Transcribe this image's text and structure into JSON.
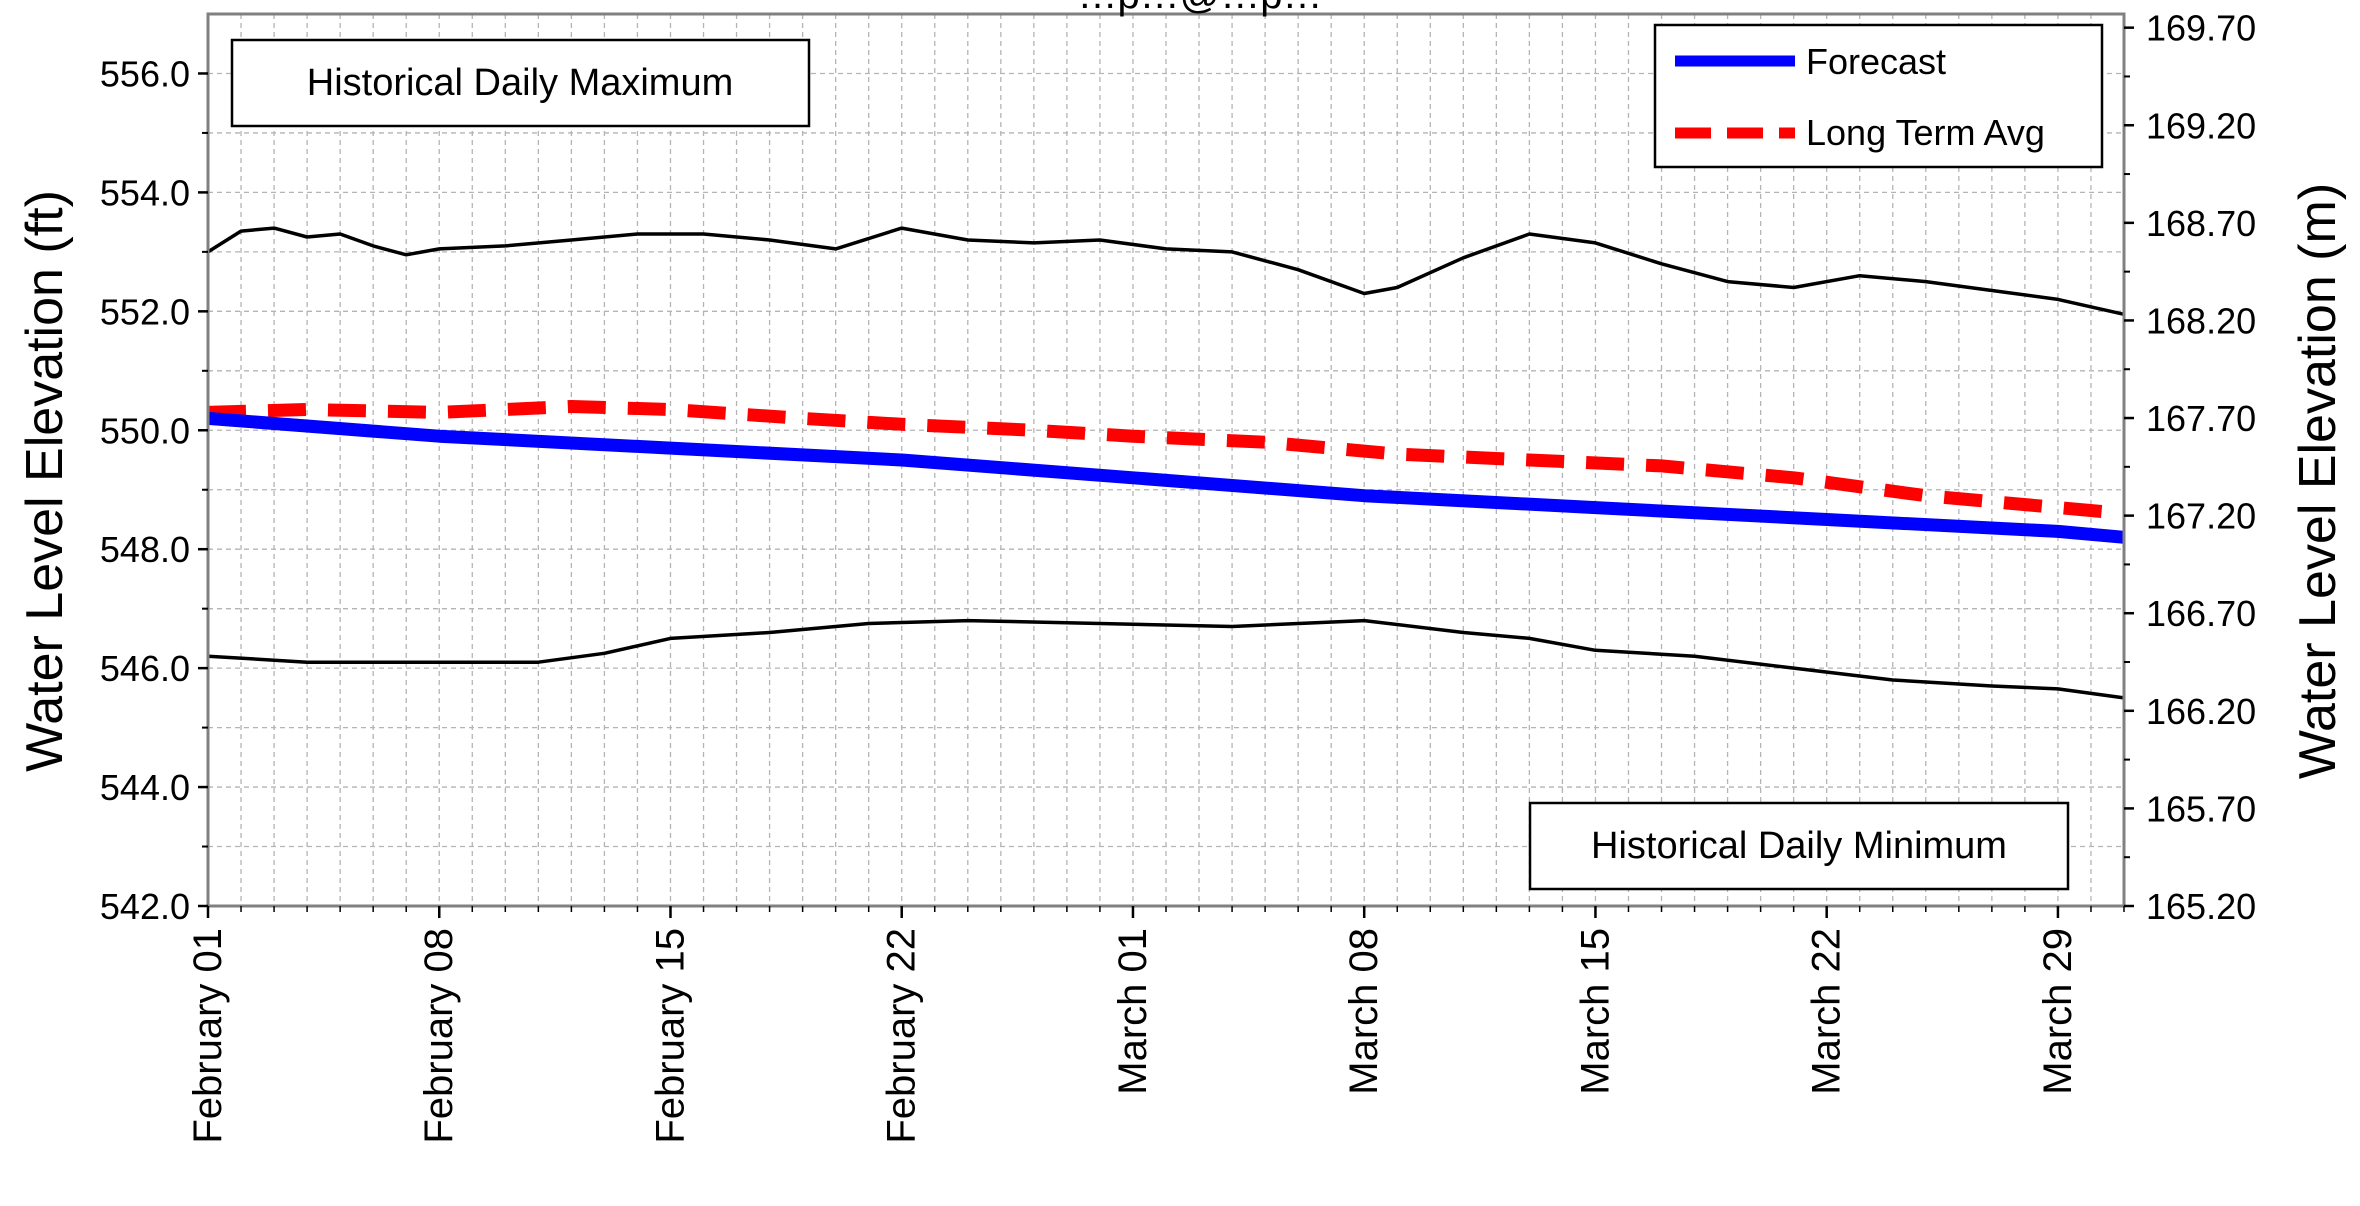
{
  "title": "…p…@…p…",
  "chart_data": {
    "type": "line",
    "xlabel": "",
    "ylabel": "Water Level Elevation (ft)",
    "ylabel_right": "Water Level Elevation (m)",
    "x_ticks": [
      "February 01",
      "February 08",
      "February 15",
      "February 22",
      "March 01",
      "March 08",
      "March 15",
      "March 22",
      "March 29"
    ],
    "y_ticks": [
      "542.0",
      "544.0",
      "546.0",
      "548.0",
      "550.0",
      "552.0",
      "554.0",
      "556.0"
    ],
    "y_ticks_right": [
      "165.20",
      "165.70",
      "166.20",
      "166.70",
      "167.20",
      "167.70",
      "168.20",
      "168.70",
      "169.20",
      "169.70"
    ],
    "ylim": [
      542.0,
      557.0
    ],
    "ylim_right": [
      165.2,
      169.77
    ],
    "xlim_days": [
      0,
      58
    ],
    "grid": true,
    "legend": {
      "position": "top-right",
      "entries": [
        {
          "name": "Forecast",
          "color": "#0000FF",
          "style": "solid"
        },
        {
          "name": "Long Term Avg",
          "color": "#FF0000",
          "style": "dashed"
        }
      ]
    },
    "annotations": [
      "Historical Daily Maximum",
      "Historical Daily Minimum"
    ],
    "series": [
      {
        "name": "Forecast",
        "color": "#0000FF",
        "style": "solid",
        "x": [
          "2001-02-01",
          "2001-02-08",
          "2001-02-15",
          "2001-02-22",
          "2001-03-01",
          "2001-03-08",
          "2001-03-15",
          "2001-03-22",
          "2001-03-29",
          "2001-03-31"
        ],
        "y": [
          550.2,
          549.9,
          549.7,
          549.5,
          549.2,
          548.9,
          548.7,
          548.5,
          548.3,
          548.2
        ]
      },
      {
        "name": "Long Term Avg",
        "color": "#FF0000",
        "style": "dashed",
        "x": [
          "2001-02-01",
          "2001-02-04",
          "2001-02-08",
          "2001-02-12",
          "2001-02-15",
          "2001-02-19",
          "2001-02-22",
          "2001-02-26",
          "2001-03-01",
          "2001-03-05",
          "2001-03-09",
          "2001-03-13",
          "2001-03-17",
          "2001-03-21",
          "2001-03-25",
          "2001-03-31"
        ],
        "y": [
          550.3,
          550.35,
          550.3,
          550.4,
          550.35,
          550.2,
          550.1,
          550.0,
          549.9,
          549.8,
          549.6,
          549.5,
          549.4,
          549.2,
          548.9,
          548.6
        ]
      },
      {
        "name": "Historical Daily Maximum",
        "color": "#000000",
        "style": "solid",
        "x": [
          "2001-02-01",
          "2001-02-02",
          "2001-02-03",
          "2001-02-04",
          "2001-02-05",
          "2001-02-06",
          "2001-02-07",
          "2001-02-08",
          "2001-02-10",
          "2001-02-12",
          "2001-02-14",
          "2001-02-16",
          "2001-02-18",
          "2001-02-20",
          "2001-02-22",
          "2001-02-24",
          "2001-02-26",
          "2001-02-28",
          "2001-03-02",
          "2001-03-04",
          "2001-03-06",
          "2001-03-08",
          "2001-03-09",
          "2001-03-11",
          "2001-03-13",
          "2001-03-15",
          "2001-03-17",
          "2001-03-19",
          "2001-03-21",
          "2001-03-23",
          "2001-03-25",
          "2001-03-27",
          "2001-03-29",
          "2001-03-31"
        ],
        "y": [
          553.0,
          553.35,
          553.4,
          553.25,
          553.3,
          553.1,
          552.95,
          553.05,
          553.1,
          553.2,
          553.3,
          553.3,
          553.2,
          553.05,
          553.4,
          553.2,
          553.15,
          553.2,
          553.05,
          553.0,
          552.7,
          552.3,
          552.4,
          552.9,
          553.3,
          553.15,
          552.8,
          552.5,
          552.4,
          552.6,
          552.5,
          552.35,
          552.2,
          551.95
        ]
      },
      {
        "name": "Historical Daily Minimum",
        "color": "#000000",
        "style": "solid",
        "x": [
          "2001-02-01",
          "2001-02-04",
          "2001-02-08",
          "2001-02-11",
          "2001-02-13",
          "2001-02-15",
          "2001-02-18",
          "2001-02-21",
          "2001-02-24",
          "2001-02-28",
          "2001-03-04",
          "2001-03-08",
          "2001-03-11",
          "2001-03-13",
          "2001-03-15",
          "2001-03-18",
          "2001-03-21",
          "2001-03-24",
          "2001-03-27",
          "2001-03-29",
          "2001-03-31"
        ],
        "y": [
          546.2,
          546.1,
          546.1,
          546.1,
          546.25,
          546.5,
          546.6,
          546.75,
          546.8,
          546.75,
          546.7,
          546.8,
          546.6,
          546.5,
          546.3,
          546.2,
          546.0,
          545.8,
          545.7,
          545.65,
          545.5
        ]
      }
    ]
  }
}
